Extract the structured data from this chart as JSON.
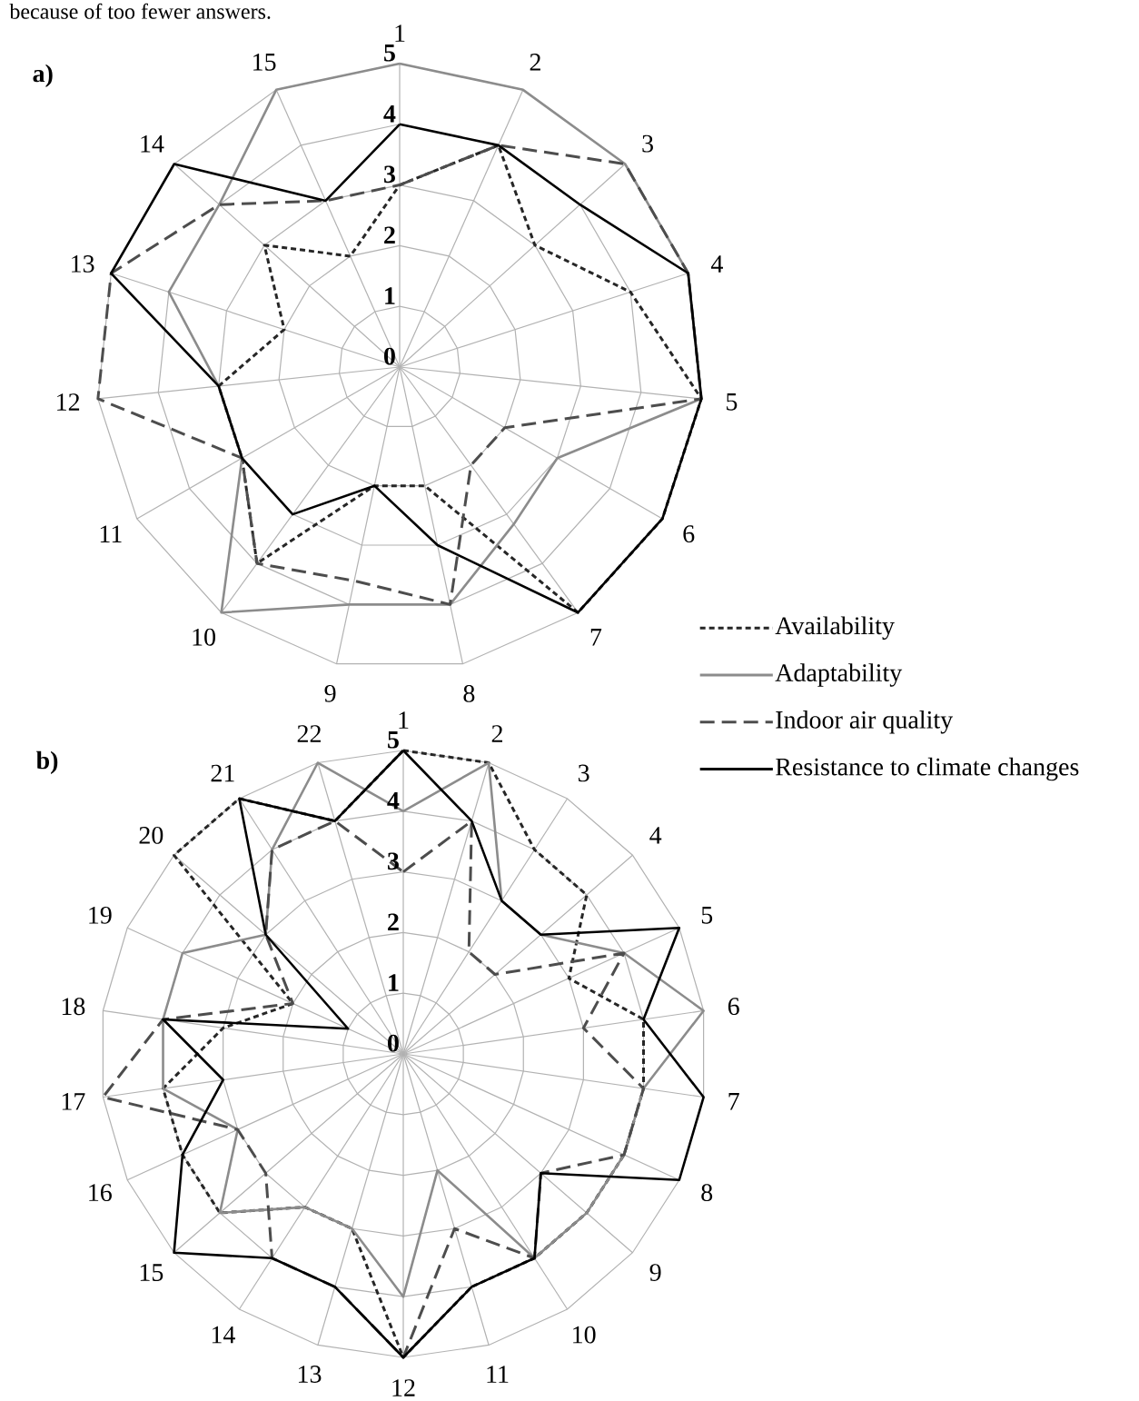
{
  "chart_data": [
    {
      "type": "radar",
      "title": "a)",
      "annotations": [
        "because of too fewer answers."
      ],
      "categories": [
        "1",
        "2",
        "3",
        "4",
        "5",
        "6",
        "7",
        "8",
        "9",
        "10",
        "11",
        "12",
        "13",
        "14",
        "15"
      ],
      "ylim": [
        0,
        5
      ],
      "yticks": [
        0,
        1,
        2,
        3,
        4,
        5
      ],
      "grid": true,
      "legend": "right",
      "marker": "none",
      "series": [
        {
          "name": "Availability",
          "color": "#262626",
          "line_style": "dotted",
          "values": [
            3,
            4,
            3,
            4,
            5,
            5,
            5,
            2,
            2,
            4,
            3,
            3,
            2,
            3,
            2
          ]
        },
        {
          "name": "Adaptability",
          "color": "#8c8c8c",
          "line_style": "solid",
          "values": [
            5,
            5,
            5,
            5,
            5,
            3,
            3.2,
            4,
            4,
            5,
            3,
            3,
            4,
            4,
            5
          ]
        },
        {
          "name": "Indoor air quality",
          "color": "#4d4d4d",
          "line_style": "dashed",
          "values": [
            3,
            4,
            5,
            5,
            5,
            2,
            2,
            4,
            3.6,
            4,
            3,
            5,
            5,
            4,
            3
          ]
        },
        {
          "name": "Resistance to climate changes",
          "color": "#000000",
          "line_style": "solid",
          "values": [
            4,
            4,
            4,
            5,
            5,
            5,
            5,
            3,
            2,
            3,
            3,
            3,
            5,
            5,
            3
          ]
        }
      ]
    },
    {
      "type": "radar",
      "title": "b)",
      "categories": [
        "1",
        "2",
        "3",
        "4",
        "5",
        "6",
        "7",
        "8",
        "9",
        "10",
        "11",
        "12",
        "13",
        "14",
        "15",
        "16",
        "17",
        "18",
        "19",
        "20",
        "21",
        "22"
      ],
      "ylim": [
        0,
        5
      ],
      "yticks": [
        0,
        1,
        2,
        3,
        4,
        5
      ],
      "grid": true,
      "marker": "none",
      "series": [
        {
          "color": "#262626",
          "line_style": "dotted",
          "values": [
            5,
            5,
            4,
            4,
            3,
            4,
            4,
            4,
            4,
            4,
            4,
            5,
            3,
            3,
            4,
            4,
            4,
            3,
            2,
            5,
            5,
            4
          ]
        },
        {
          "color": "#8c8c8c",
          "line_style": "solid",
          "values": [
            4,
            5,
            3,
            3,
            4,
            5,
            4,
            4,
            4,
            4,
            2,
            4,
            3,
            3,
            4,
            3,
            4,
            4,
            4,
            3,
            4,
            5
          ]
        },
        {
          "color": "#4d4d4d",
          "line_style": "dashed",
          "values": [
            3,
            4,
            2,
            2,
            4,
            3,
            4,
            4,
            3,
            4,
            3,
            5,
            4,
            4,
            3,
            3,
            5,
            4,
            2,
            3,
            4,
            4
          ]
        },
        {
          "color": "#000000",
          "line_style": "solid",
          "values": [
            5,
            4,
            3,
            3,
            5,
            4,
            5,
            5,
            3,
            4,
            4,
            5,
            4,
            4,
            5,
            4,
            3,
            4,
            1,
            3,
            5,
            4
          ]
        }
      ]
    }
  ]
}
